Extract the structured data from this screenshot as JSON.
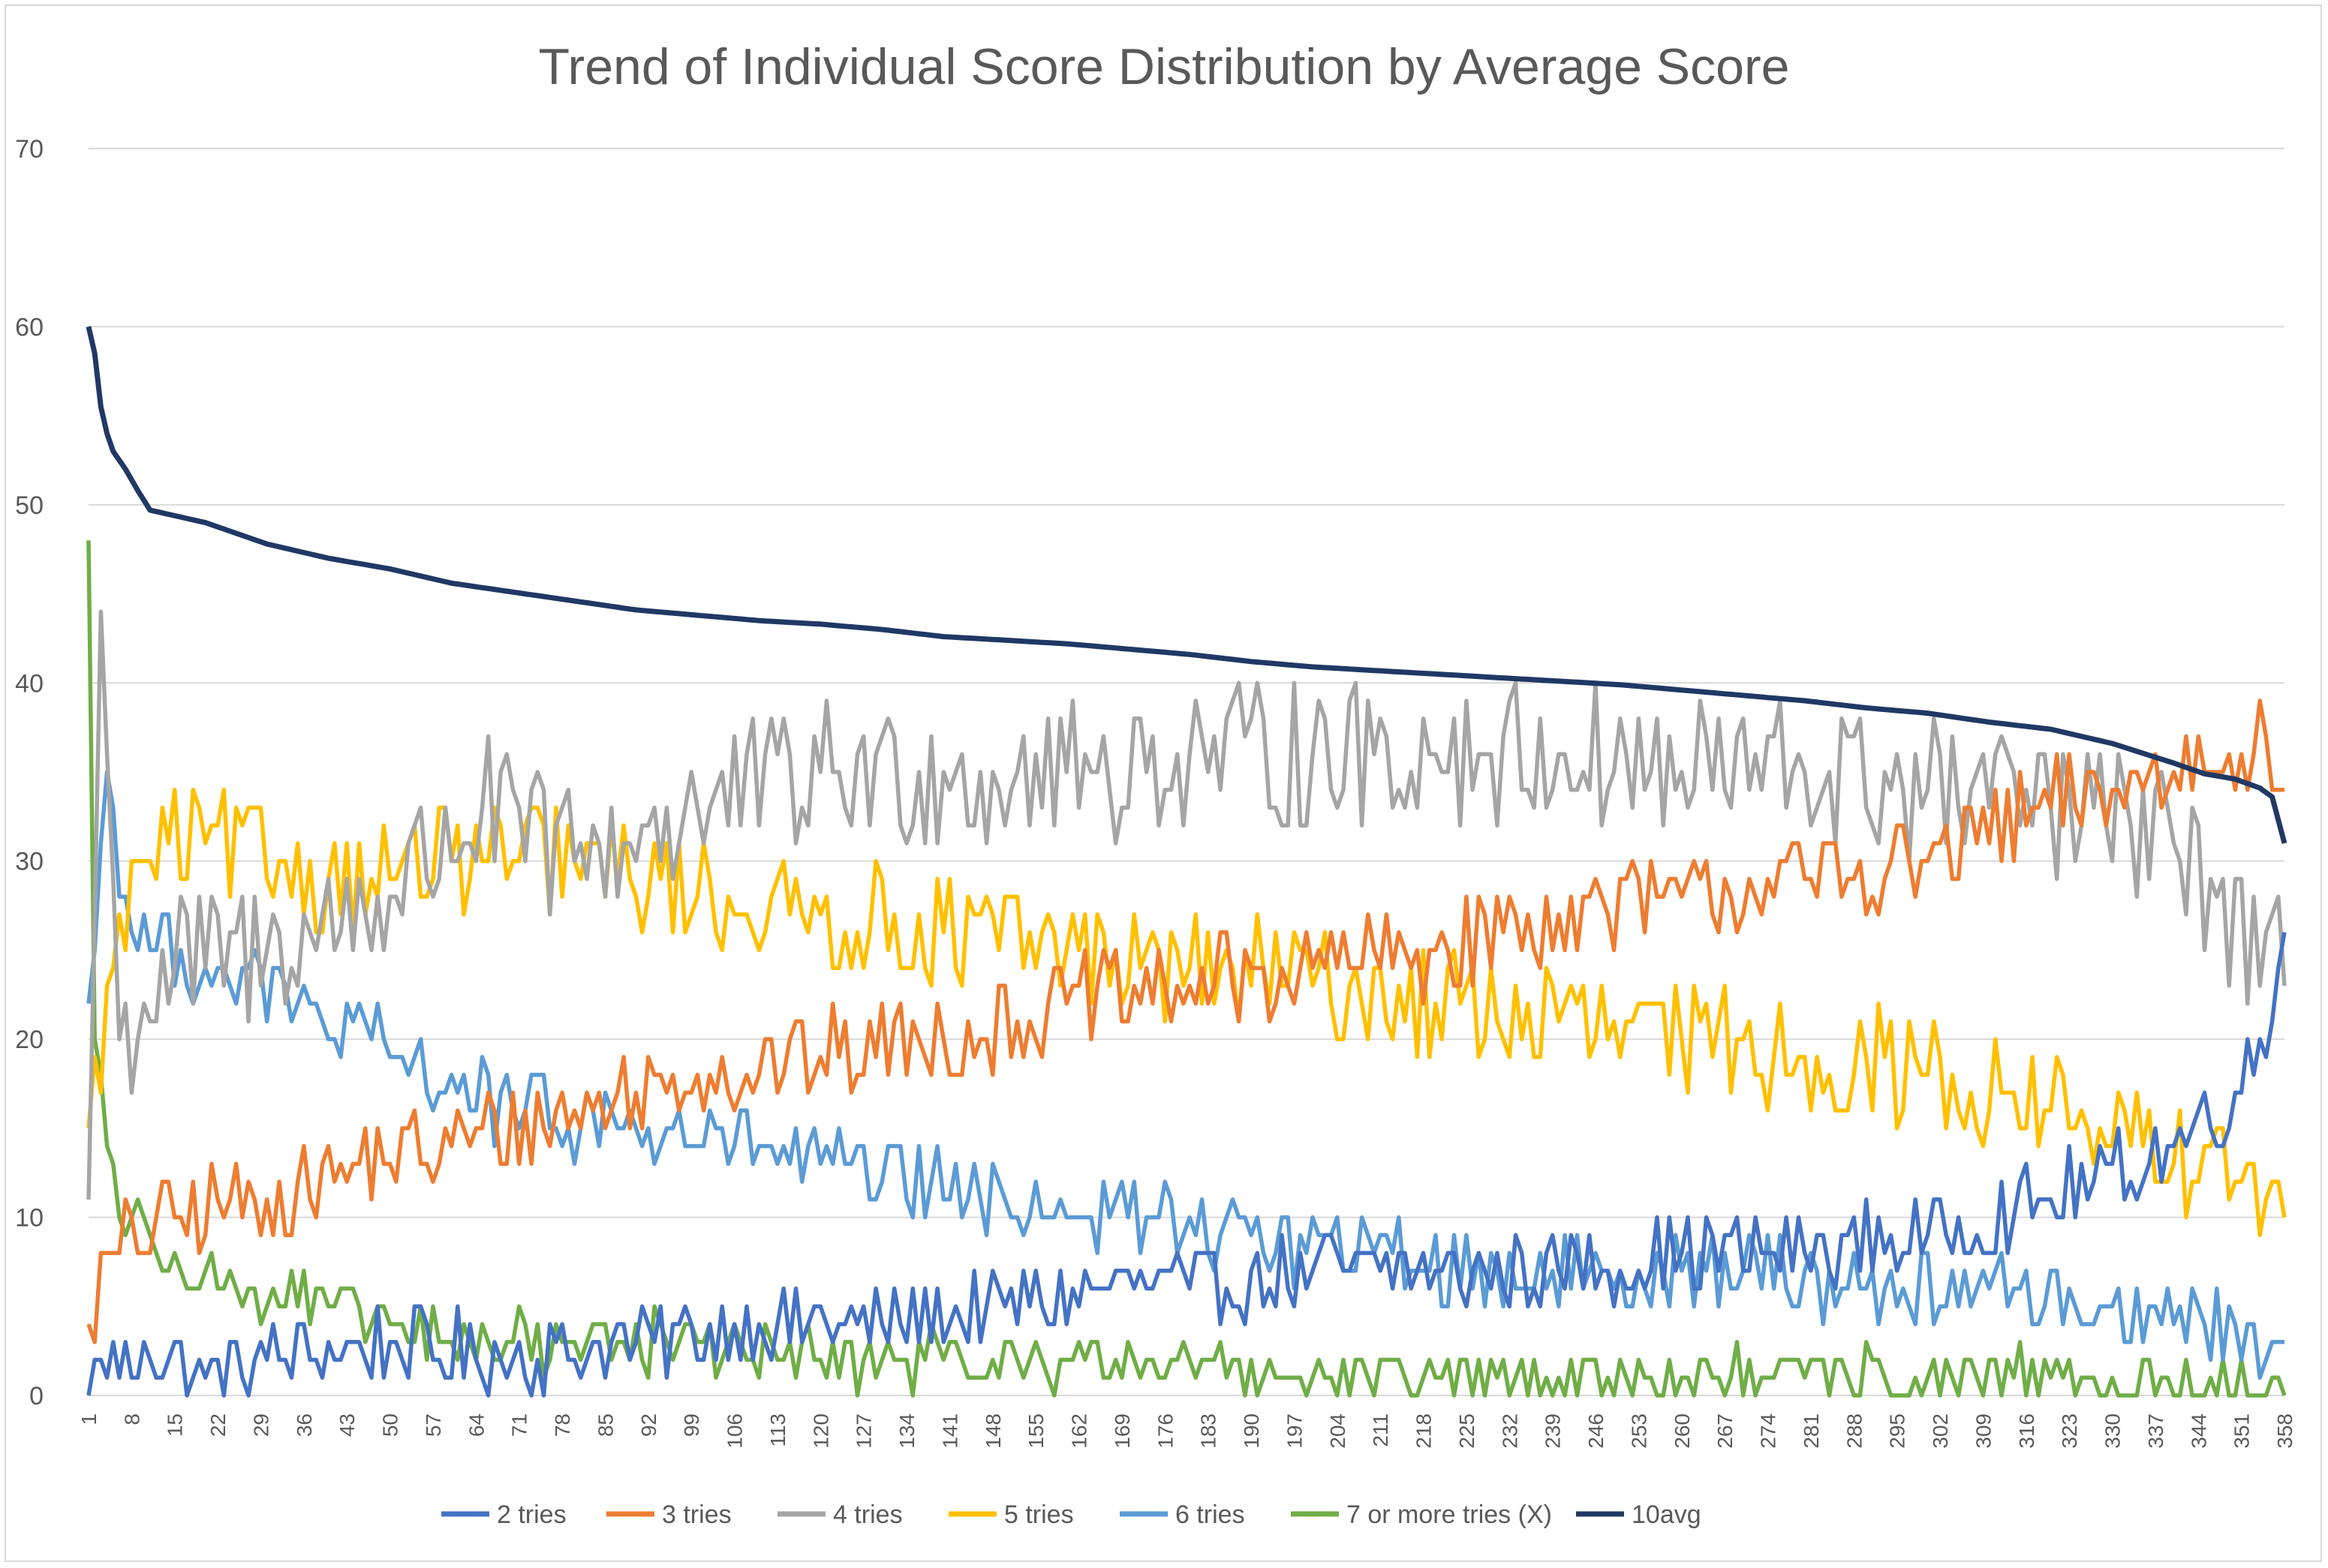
{
  "chart_data": {
    "type": "line",
    "title": "Trend of Individual Score Distribution by Average Score",
    "xlabel": "",
    "ylabel": "",
    "ylim": [
      0,
      70
    ],
    "yticks": [
      0,
      10,
      20,
      30,
      40,
      50,
      60,
      70
    ],
    "xlim": [
      1,
      358
    ],
    "xticks": [
      1,
      8,
      15,
      22,
      29,
      36,
      43,
      50,
      57,
      64,
      71,
      78,
      85,
      92,
      99,
      106,
      113,
      120,
      127,
      134,
      141,
      148,
      155,
      162,
      169,
      176,
      183,
      190,
      197,
      204,
      211,
      218,
      225,
      232,
      239,
      246,
      253,
      260,
      267,
      274,
      281,
      288,
      295,
      302,
      309,
      316,
      323,
      330,
      337,
      344,
      351,
      358
    ],
    "grid": true,
    "legend_position": "bottom",
    "series": [
      {
        "name": "2 tries",
        "color": "#4472C4",
        "anchors": [
          [
            1,
            0
          ],
          [
            3,
            2
          ],
          [
            8,
            1
          ],
          [
            10,
            3
          ],
          [
            20,
            1
          ],
          [
            30,
            2
          ],
          [
            50,
            3
          ],
          [
            70,
            2
          ],
          [
            90,
            3
          ],
          [
            110,
            4
          ],
          [
            130,
            4
          ],
          [
            150,
            5
          ],
          [
            165,
            6
          ],
          [
            180,
            6
          ],
          [
            200,
            7
          ],
          [
            220,
            7
          ],
          [
            240,
            7
          ],
          [
            260,
            8
          ],
          [
            280,
            8
          ],
          [
            300,
            9
          ],
          [
            320,
            11
          ],
          [
            340,
            14
          ],
          [
            350,
            17
          ],
          [
            356,
            21
          ],
          [
            358,
            26
          ]
        ],
        "noise": 2.2
      },
      {
        "name": "3 tries",
        "color": "#ED7D31",
        "anchors": [
          [
            1,
            4
          ],
          [
            5,
            8
          ],
          [
            15,
            10
          ],
          [
            30,
            11
          ],
          [
            45,
            13
          ],
          [
            60,
            14
          ],
          [
            80,
            16
          ],
          [
            100,
            18
          ],
          [
            120,
            19
          ],
          [
            140,
            20
          ],
          [
            160,
            22
          ],
          [
            180,
            23
          ],
          [
            200,
            24
          ],
          [
            220,
            25
          ],
          [
            240,
            27
          ],
          [
            260,
            28
          ],
          [
            280,
            29
          ],
          [
            300,
            30
          ],
          [
            320,
            33
          ],
          [
            340,
            35
          ],
          [
            355,
            37
          ],
          [
            358,
            34
          ]
        ],
        "noise": 2.6
      },
      {
        "name": "4 tries",
        "color": "#A5A5A5",
        "anchors": [
          [
            1,
            11
          ],
          [
            3,
            44
          ],
          [
            6,
            20
          ],
          [
            15,
            24
          ],
          [
            30,
            25
          ],
          [
            50,
            28
          ],
          [
            65,
            33
          ],
          [
            80,
            30
          ],
          [
            100,
            33
          ],
          [
            120,
            35
          ],
          [
            140,
            35
          ],
          [
            160,
            35
          ],
          [
            180,
            36
          ],
          [
            200,
            36
          ],
          [
            220,
            36
          ],
          [
            240,
            36
          ],
          [
            260,
            35
          ],
          [
            280,
            35
          ],
          [
            300,
            34
          ],
          [
            320,
            33
          ],
          [
            340,
            31
          ],
          [
            358,
            23
          ]
        ],
        "noise": 4.2
      },
      {
        "name": "5 tries",
        "color": "#FFC000",
        "anchors": [
          [
            1,
            15
          ],
          [
            5,
            24
          ],
          [
            10,
            30
          ],
          [
            20,
            31
          ],
          [
            40,
            29
          ],
          [
            60,
            30
          ],
          [
            80,
            30
          ],
          [
            100,
            28
          ],
          [
            120,
            27
          ],
          [
            140,
            26
          ],
          [
            160,
            25
          ],
          [
            180,
            24
          ],
          [
            200,
            23
          ],
          [
            220,
            22
          ],
          [
            240,
            21
          ],
          [
            260,
            20
          ],
          [
            280,
            19
          ],
          [
            300,
            18
          ],
          [
            320,
            16
          ],
          [
            335,
            14
          ],
          [
            350,
            12
          ],
          [
            358,
            10
          ]
        ],
        "noise": 3.2
      },
      {
        "name": "6 tries",
        "color": "#5B9BD5",
        "anchors": [
          [
            1,
            22
          ],
          [
            4,
            35
          ],
          [
            8,
            26
          ],
          [
            20,
            24
          ],
          [
            35,
            22
          ],
          [
            50,
            19
          ],
          [
            70,
            16
          ],
          [
            90,
            15
          ],
          [
            110,
            14
          ],
          [
            130,
            12
          ],
          [
            150,
            11
          ],
          [
            170,
            10
          ],
          [
            190,
            9
          ],
          [
            210,
            8
          ],
          [
            230,
            7
          ],
          [
            250,
            7
          ],
          [
            270,
            7
          ],
          [
            290,
            6
          ],
          [
            310,
            6
          ],
          [
            330,
            5
          ],
          [
            345,
            4
          ],
          [
            358,
            3
          ]
        ],
        "noise": 2.2
      },
      {
        "name": "7 or more tries (X)",
        "color": "#70AD47",
        "anchors": [
          [
            1,
            48
          ],
          [
            2,
            20
          ],
          [
            6,
            10
          ],
          [
            15,
            8
          ],
          [
            25,
            6
          ],
          [
            40,
            5
          ],
          [
            60,
            3
          ],
          [
            80,
            3
          ],
          [
            100,
            3
          ],
          [
            120,
            2
          ],
          [
            140,
            2
          ],
          [
            160,
            2
          ],
          [
            180,
            2
          ],
          [
            200,
            1
          ],
          [
            220,
            1
          ],
          [
            260,
            1
          ],
          [
            300,
            1
          ],
          [
            330,
            1
          ],
          [
            358,
            0
          ]
        ],
        "noise": 1.6
      },
      {
        "name": "10avg",
        "color": "#203864",
        "anchors": [
          [
            1,
            60
          ],
          [
            2,
            58.5
          ],
          [
            3,
            55.5
          ],
          [
            4,
            54
          ],
          [
            5,
            53
          ],
          [
            7,
            52
          ],
          [
            9,
            50.8
          ],
          [
            11,
            49.7
          ],
          [
            20,
            49
          ],
          [
            30,
            47.8
          ],
          [
            40,
            47
          ],
          [
            50,
            46.4
          ],
          [
            60,
            45.6
          ],
          [
            70,
            45.1
          ],
          [
            80,
            44.6
          ],
          [
            90,
            44.1
          ],
          [
            100,
            43.8
          ],
          [
            110,
            43.5
          ],
          [
            120,
            43.3
          ],
          [
            130,
            43
          ],
          [
            140,
            42.6
          ],
          [
            150,
            42.4
          ],
          [
            160,
            42.2
          ],
          [
            170,
            41.9
          ],
          [
            180,
            41.6
          ],
          [
            190,
            41.2
          ],
          [
            200,
            40.9
          ],
          [
            210,
            40.7
          ],
          [
            220,
            40.5
          ],
          [
            230,
            40.3
          ],
          [
            240,
            40.1
          ],
          [
            250,
            39.9
          ],
          [
            260,
            39.6
          ],
          [
            270,
            39.3
          ],
          [
            280,
            39
          ],
          [
            290,
            38.6
          ],
          [
            300,
            38.3
          ],
          [
            310,
            37.8
          ],
          [
            320,
            37.4
          ],
          [
            330,
            36.6
          ],
          [
            340,
            35.5
          ],
          [
            345,
            34.9
          ],
          [
            350,
            34.6
          ],
          [
            354,
            34.1
          ],
          [
            356,
            33.6
          ],
          [
            358,
            31
          ]
        ],
        "noise": 0
      }
    ]
  }
}
